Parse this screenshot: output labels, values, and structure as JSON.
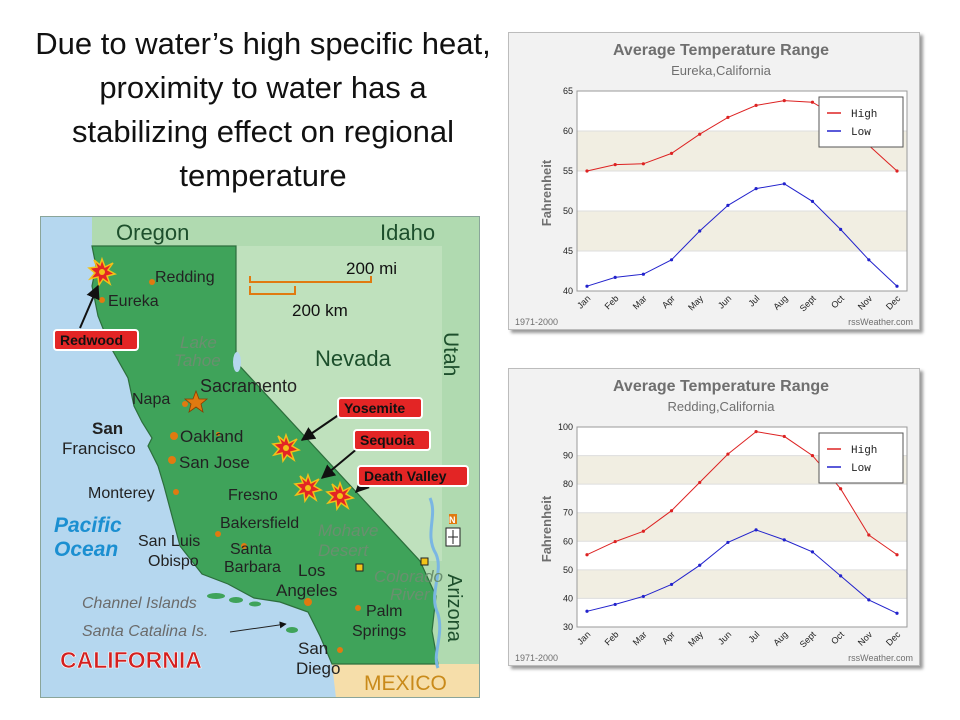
{
  "slide": {
    "title": "Due to water’s high specific heat, proximity to water has a stabilizing effect on regional temperature"
  },
  "map": {
    "region_labels": {
      "oregon": "Oregon",
      "idaho": "Idaho",
      "nevada": "Nevada",
      "utah": "Utah",
      "arizona": "Arizona",
      "mexico": "MEXICO",
      "pacific_1": "Pacific",
      "pacific_2": "Ocean",
      "california": "CALIFORNIA"
    },
    "scale": {
      "miles": "200 mi",
      "km": "200 km"
    },
    "cities": {
      "redding": "Redding",
      "eureka": "Eureka",
      "lake_1": "Lake",
      "lake_2": "Tahoe",
      "sacramento": "Sacramento",
      "napa": "Napa",
      "sf_1": "San",
      "sf_2": "Francisco",
      "oakland": "Oakland",
      "san_jose": "San Jose",
      "monterey": "Monterey",
      "fresno": "Fresno",
      "bakersfield": "Bakersfield",
      "mohave_1": "Mohave",
      "mohave_2": "Desert",
      "slo_1": "San Luis",
      "slo_2": "Obispo",
      "sb_1": "Santa",
      "sb_2": "Barbara",
      "la_1": "Los",
      "la_2": "Angeles",
      "colorado_1": "Colorado",
      "colorado_2": "River",
      "channel_islands": "Channel Islands",
      "palm_1": "Palm",
      "palm_2": "Springs",
      "catalina": "Santa Catalina Is.",
      "sd_1": "San",
      "sd_2": "Diego"
    },
    "callouts": {
      "redwood": "Redwood",
      "yosemite": "Yosemite",
      "sequoia": "Sequoia",
      "death_valley": "Death Valley"
    },
    "compass": "N"
  },
  "charts": [
    {
      "title": "Average Temperature Range",
      "subtitle": "Eureka,California",
      "ylabel": "Fahrenheit",
      "footer_left": "1971-2000",
      "footer_right": "rssWeather.com",
      "legend": [
        "High",
        "Low"
      ]
    },
    {
      "title": "Average Temperature Range",
      "subtitle": "Redding,California",
      "ylabel": "Fahrenheit",
      "footer_left": "1971-2000",
      "footer_right": "rssWeather.com",
      "legend": [
        "High",
        "Low"
      ]
    }
  ],
  "chart_data": [
    {
      "type": "line",
      "title": "Average Temperature Range",
      "subtitle": "Eureka,California",
      "ylabel": "Fahrenheit",
      "categories": [
        "Jan",
        "Feb",
        "Mar",
        "Apr",
        "May",
        "Jun",
        "Jul",
        "Aug",
        "Sept",
        "Oct",
        "Nov",
        "Dec"
      ],
      "ylim": [
        40,
        65
      ],
      "yticks": [
        40,
        45,
        50,
        55,
        60,
        65
      ],
      "series": [
        {
          "name": "High",
          "color": "#dd2222",
          "values": [
            55.0,
            55.8,
            55.9,
            57.2,
            59.6,
            61.7,
            63.2,
            63.8,
            63.6,
            61.5,
            58.2,
            55.0
          ]
        },
        {
          "name": "Low",
          "color": "#2222cc",
          "values": [
            40.6,
            41.7,
            42.1,
            43.9,
            47.5,
            50.7,
            52.8,
            53.4,
            51.2,
            47.7,
            43.9,
            40.6
          ]
        }
      ],
      "grid": true,
      "legend_position": "top-right"
    },
    {
      "type": "line",
      "title": "Average Temperature Range",
      "subtitle": "Redding,California",
      "ylabel": "Fahrenheit",
      "categories": [
        "Jan",
        "Feb",
        "Mar",
        "Apr",
        "May",
        "Jun",
        "Jul",
        "Aug",
        "Sept",
        "Oct",
        "Nov",
        "Dec"
      ],
      "ylim": [
        30,
        100
      ],
      "yticks": [
        30,
        40,
        50,
        60,
        70,
        80,
        90,
        100
      ],
      "series": [
        {
          "name": "High",
          "color": "#dd2222",
          "values": [
            55.3,
            59.9,
            63.5,
            70.7,
            80.6,
            90.5,
            98.4,
            96.7,
            90.0,
            78.4,
            62.2,
            55.3
          ]
        },
        {
          "name": "Low",
          "color": "#2222cc",
          "values": [
            35.5,
            37.9,
            40.7,
            44.9,
            51.6,
            59.6,
            64.0,
            60.5,
            56.3,
            47.9,
            39.5,
            34.8
          ]
        }
      ],
      "grid": true,
      "legend_position": "top-right"
    }
  ]
}
